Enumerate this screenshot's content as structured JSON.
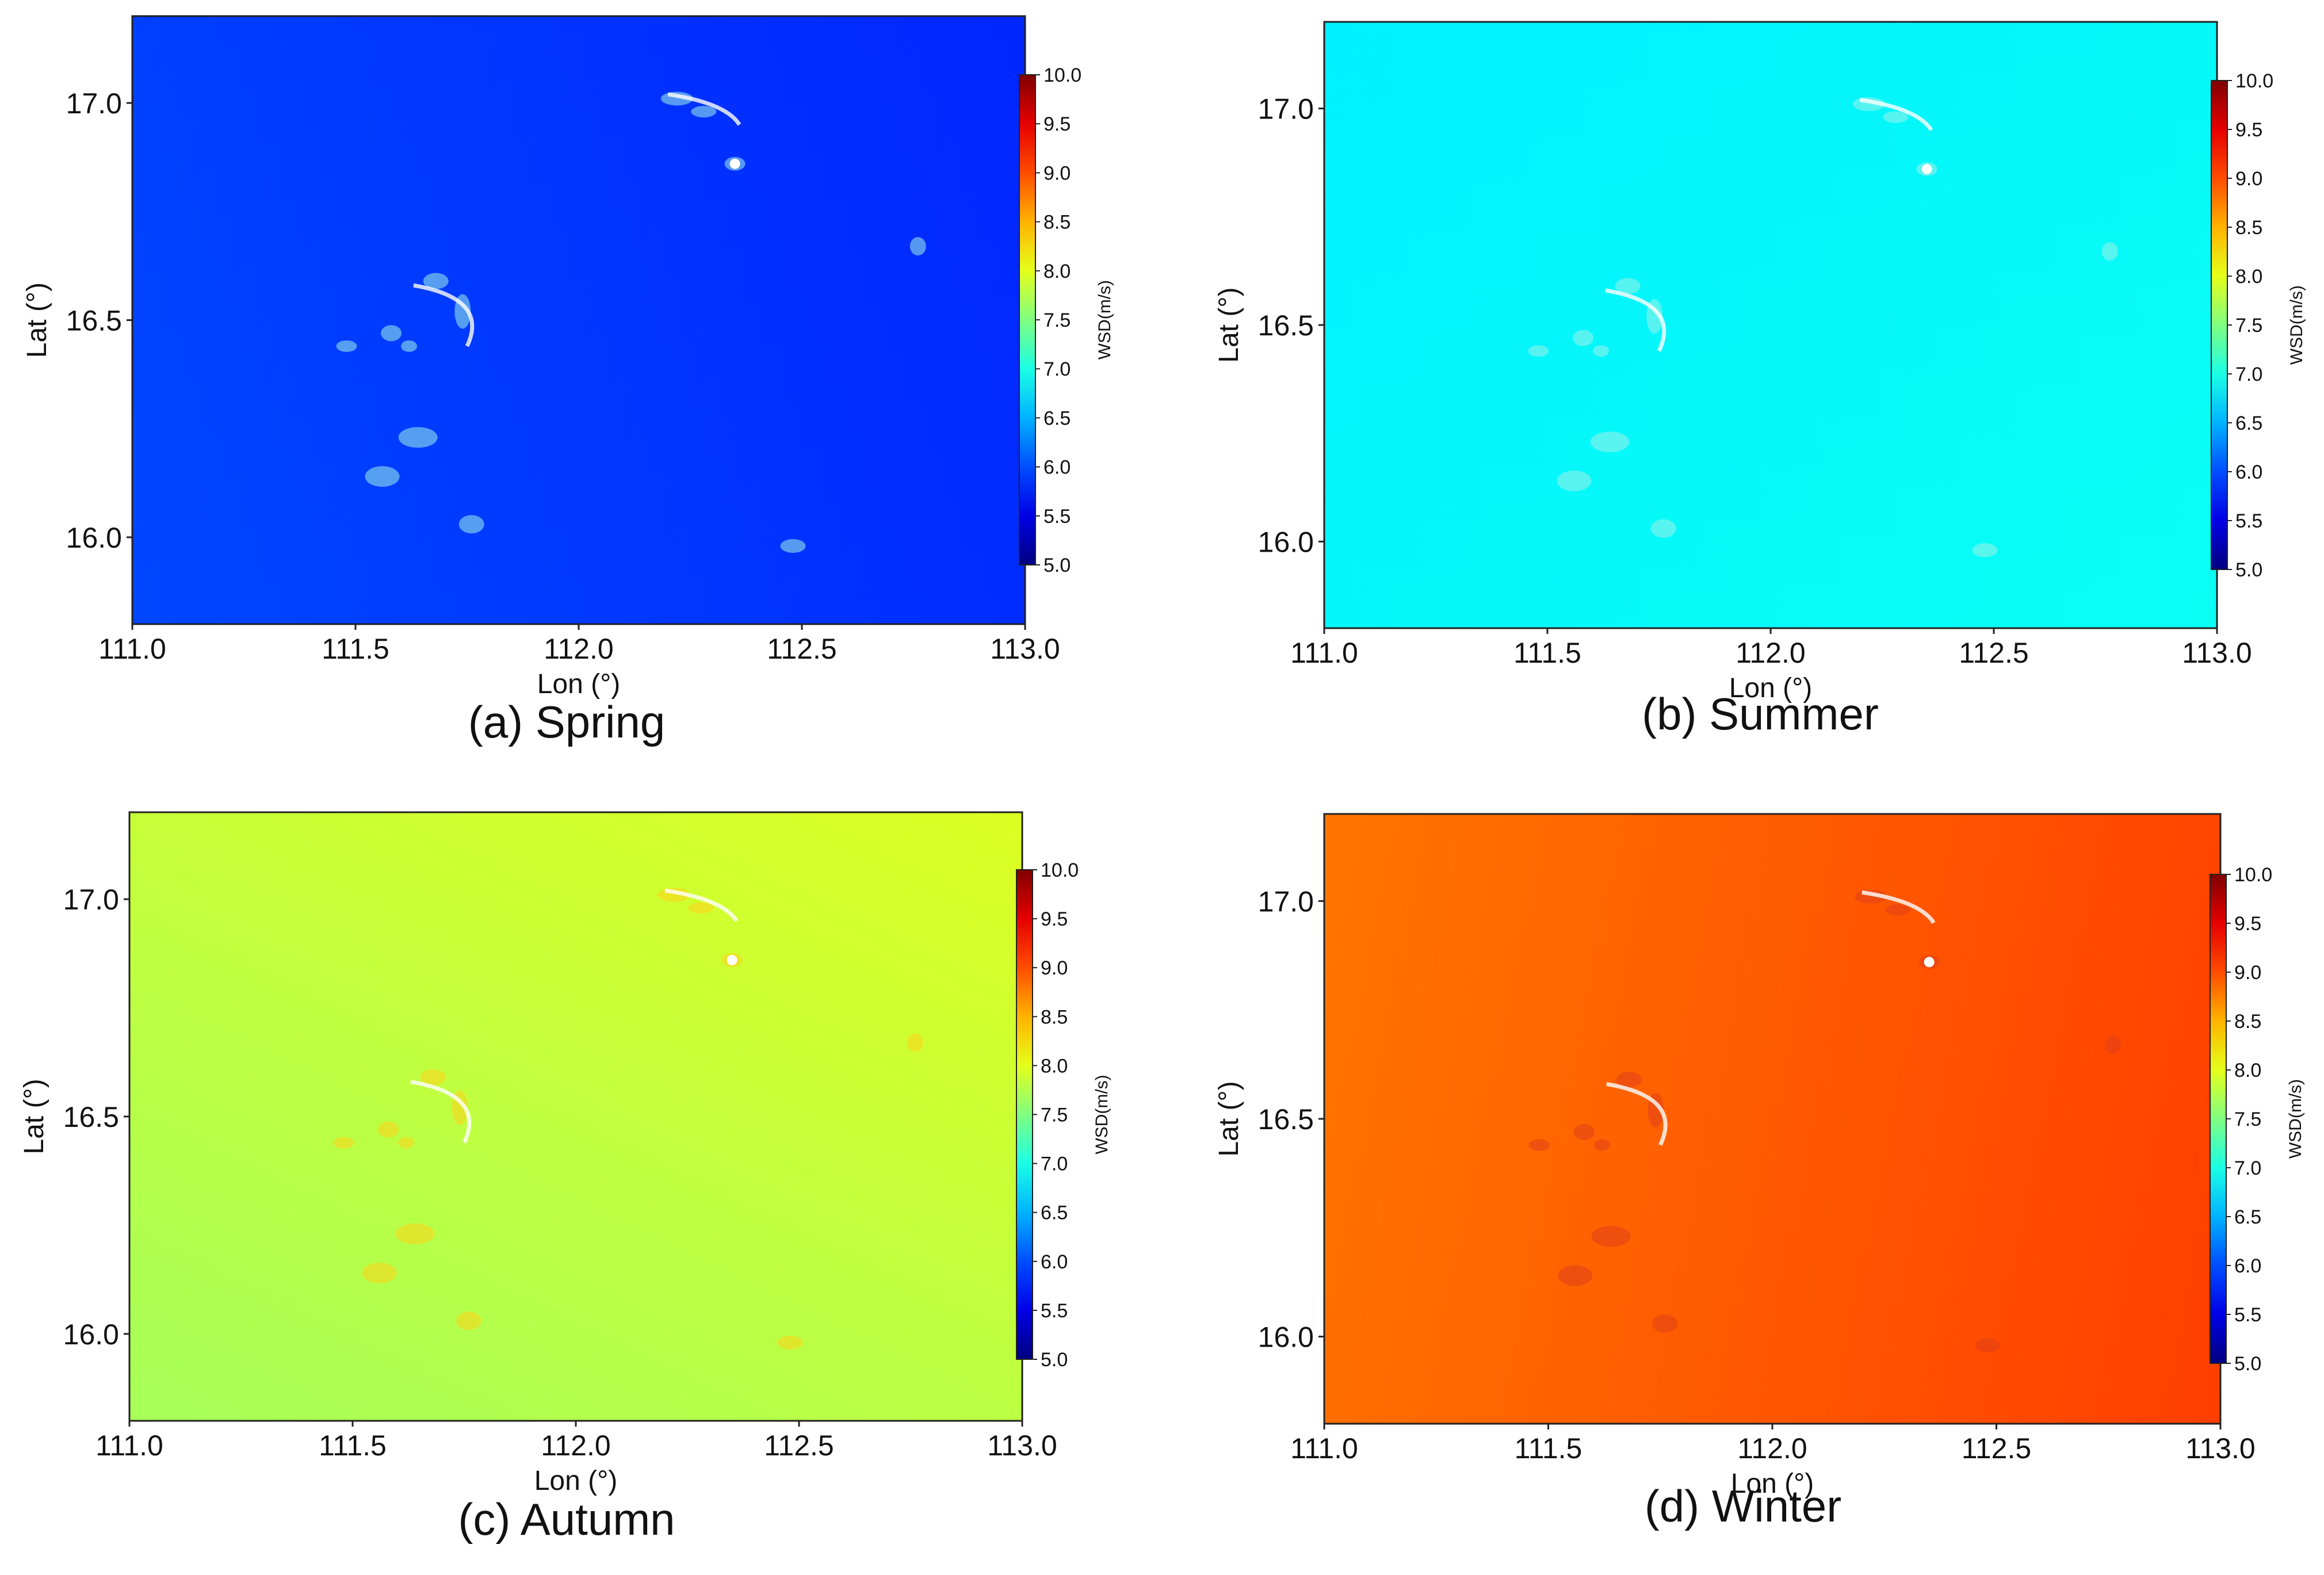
{
  "figure_description_colors": {
    "colormap": "jet",
    "island_highlight": "#ffffff"
  },
  "chart_data": [
    {
      "type": "heatmap",
      "title": "(a) Spring",
      "xlabel": "Lon (°)",
      "ylabel": "Lat (°)",
      "xlim": [
        111.0,
        113.0
      ],
      "ylim": [
        15.8,
        17.2
      ],
      "x_ticks": [
        "111.0",
        "111.5",
        "112.0",
        "112.5",
        "113.0"
      ],
      "y_ticks": [
        "16.0",
        "16.5",
        "17.0"
      ],
      "field_wsd": {
        "west_top": 5.95,
        "east_top": 5.75,
        "west_bottom": 6.05,
        "east_bottom": 5.8
      },
      "colorbar": {
        "label": "WSD(m/s)",
        "range": [
          5.0,
          10.0
        ],
        "ticks": [
          "5.0",
          "5.5",
          "6.0",
          "6.5",
          "7.0",
          "7.5",
          "8.0",
          "8.5",
          "9.0",
          "9.5",
          "10.0"
        ]
      }
    },
    {
      "type": "heatmap",
      "title": "(b) Summer",
      "xlabel": "Lon (°)",
      "ylabel": "Lat (°)",
      "xlim": [
        111.0,
        113.0
      ],
      "ylim": [
        15.8,
        17.2
      ],
      "x_ticks": [
        "111.0",
        "111.5",
        "112.0",
        "112.5",
        "113.0"
      ],
      "y_ticks": [
        "16.0",
        "16.5",
        "17.0"
      ],
      "field_wsd": {
        "west_top": 6.75,
        "east_top": 6.85,
        "west_bottom": 6.85,
        "east_bottom": 7.0
      },
      "colorbar": {
        "label": "WSD(m/s)",
        "range": [
          5.0,
          10.0
        ],
        "ticks": [
          "5.0",
          "5.5",
          "6.0",
          "6.5",
          "7.0",
          "7.5",
          "8.0",
          "8.5",
          "9.0",
          "9.5",
          "10.0"
        ]
      }
    },
    {
      "type": "heatmap",
      "title": "(c) Autumn",
      "xlabel": "Lon (°)",
      "ylabel": "Lat (°)",
      "xlim": [
        111.0,
        113.0
      ],
      "ylim": [
        15.8,
        17.2
      ],
      "x_ticks": [
        "111.0",
        "111.5",
        "112.0",
        "112.5",
        "113.0"
      ],
      "y_ticks": [
        "16.0",
        "16.5",
        "17.0"
      ],
      "field_wsd": {
        "west_top": 7.9,
        "east_top": 8.1,
        "west_bottom": 7.55,
        "east_bottom": 7.75
      },
      "colorbar": {
        "label": "WSD(m/s)",
        "range": [
          5.0,
          10.0
        ],
        "ticks": [
          "5.0",
          "5.5",
          "6.0",
          "6.5",
          "7.0",
          "7.5",
          "8.0",
          "8.5",
          "9.0",
          "9.5",
          "10.0"
        ]
      }
    },
    {
      "type": "heatmap",
      "title": "(d) Winter",
      "xlabel": "Lon (°)",
      "ylabel": "Lat (°)",
      "xlim": [
        111.0,
        113.0
      ],
      "ylim": [
        15.8,
        17.2
      ],
      "x_ticks": [
        "111.0",
        "111.5",
        "112.0",
        "112.5",
        "113.0"
      ],
      "y_ticks": [
        "16.0",
        "16.5",
        "17.0"
      ],
      "field_wsd": {
        "west_top": 8.7,
        "east_top": 9.1,
        "west_bottom": 8.75,
        "east_bottom": 9.2
      },
      "colorbar": {
        "label": "WSD(m/s)",
        "range": [
          5.0,
          10.0
        ],
        "ticks": [
          "5.0",
          "5.5",
          "6.0",
          "6.5",
          "7.0",
          "7.5",
          "8.0",
          "8.5",
          "9.0",
          "9.5",
          "10.0"
        ]
      }
    }
  ]
}
